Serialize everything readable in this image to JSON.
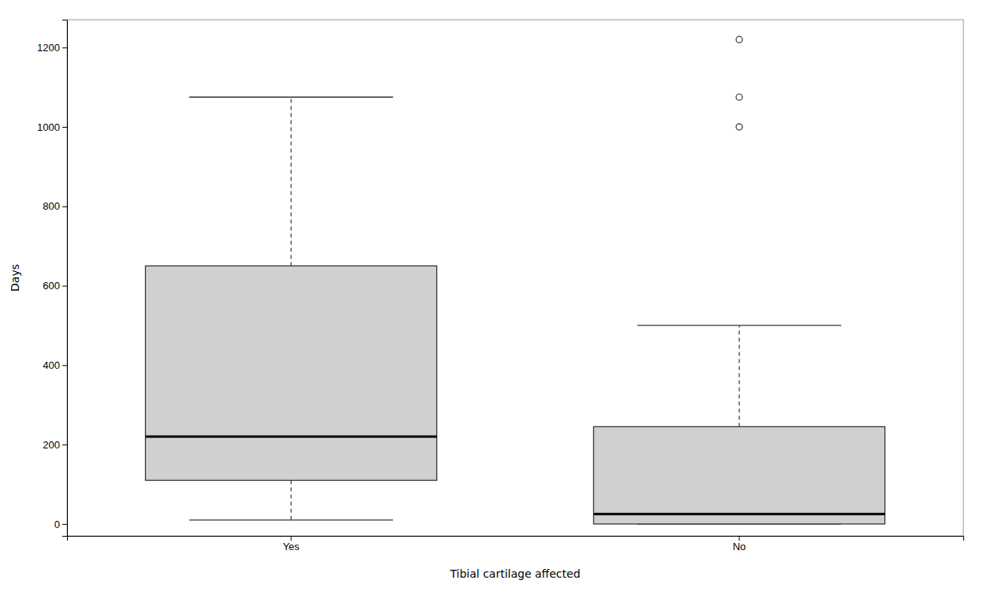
{
  "chart_data": {
    "type": "box",
    "categories": [
      "Yes",
      "No"
    ],
    "boxes": [
      {
        "whisker_low": 10,
        "q1": 110,
        "median": 220,
        "q3": 650,
        "whisker_high": 1075,
        "outliers": []
      },
      {
        "whisker_low": 0,
        "q1": 0,
        "median": 25,
        "q3": 245,
        "whisker_high": 500,
        "outliers": [
          1000,
          1075,
          1220
        ]
      }
    ],
    "color": "#d0d0d0",
    "x_label": "Tibial cartilage affected",
    "y_label": "Days",
    "ylim": [
      -30,
      1270
    ],
    "yticks": [
      0,
      200,
      400,
      600,
      800,
      1000,
      1200
    ],
    "grid": false
  }
}
